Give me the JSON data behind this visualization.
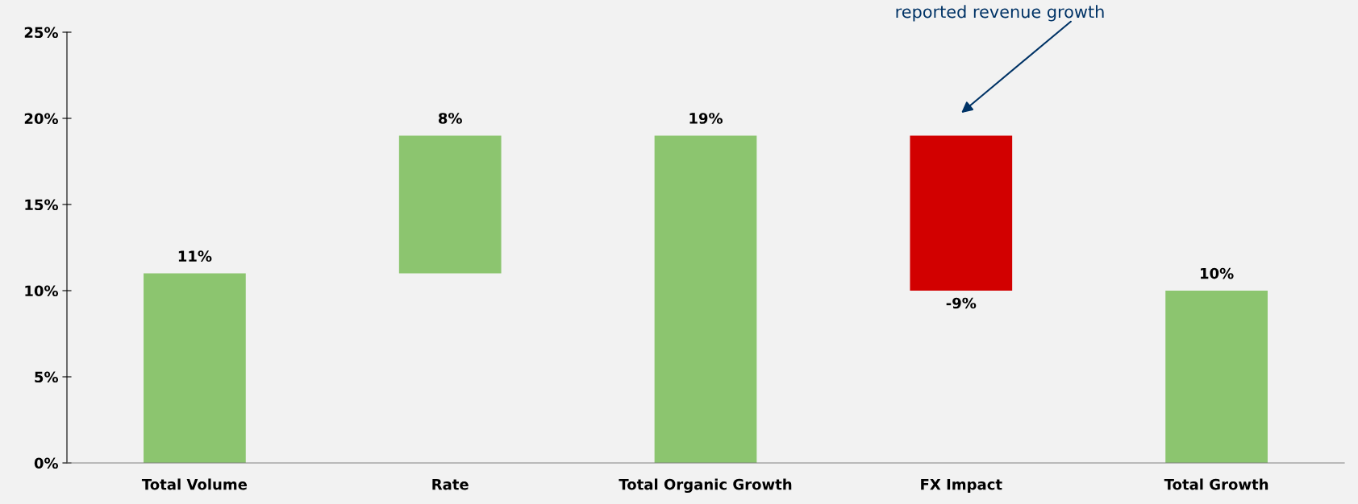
{
  "chart_data": {
    "type": "bar",
    "categories": [
      "Total Volume",
      "Rate",
      "Total Organic Growth",
      "FX Impact",
      "Total Growth"
    ],
    "values": [
      11,
      8,
      19,
      -9,
      10
    ],
    "base": [
      0,
      11,
      0,
      19,
      0
    ],
    "colors": [
      "#8cc56f",
      "#8cc56f",
      "#8cc56f",
      "#d20000",
      "#8cc56f"
    ],
    "value_labels": [
      "11%",
      "8%",
      "19%",
      "-9%",
      "10%"
    ],
    "ylim": [
      0,
      25
    ],
    "yticks": [
      {
        "value": 0,
        "label": "0%"
      },
      {
        "value": 5,
        "label": "5%"
      },
      {
        "value": 10,
        "label": "10%"
      },
      {
        "value": 15,
        "label": "15%"
      },
      {
        "value": 20,
        "label": "20%"
      },
      {
        "value": 25,
        "label": "25%"
      }
    ],
    "grid": false,
    "annotations": [
      "reported revenue growth"
    ]
  }
}
